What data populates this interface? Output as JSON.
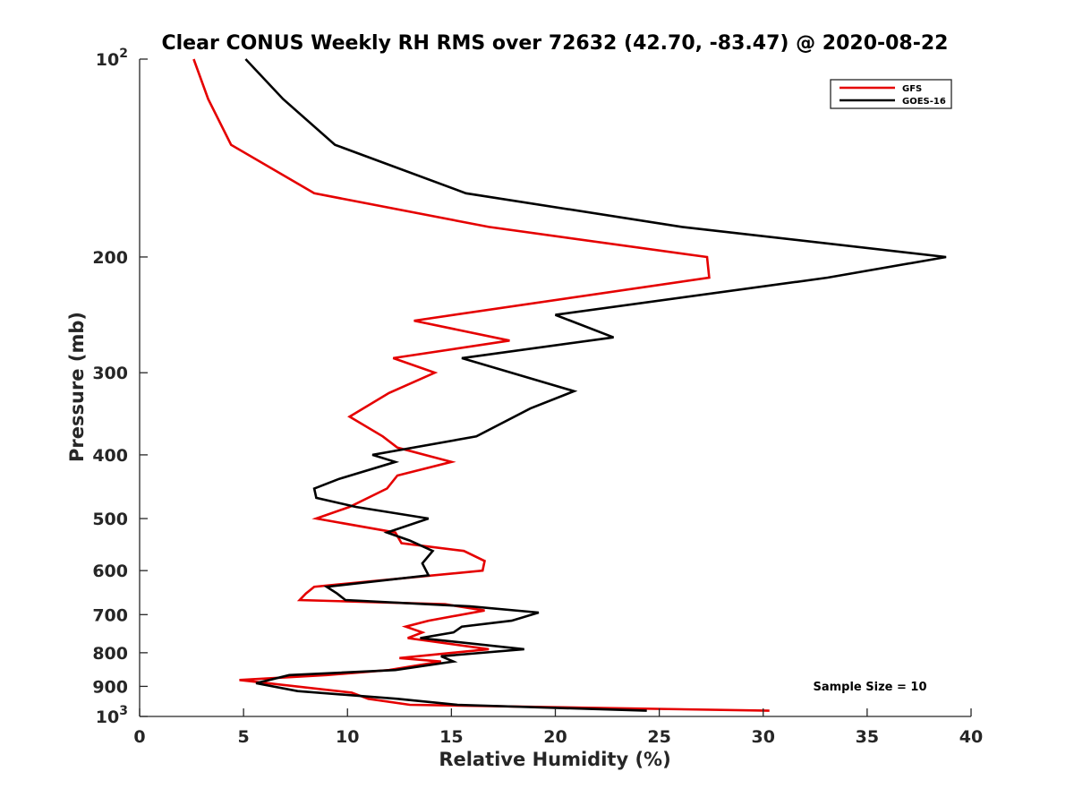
{
  "chart_data": {
    "type": "line",
    "title": "Clear CONUS Weekly RH RMS over 72632 (42.70, -83.47) @ 2020-08-22",
    "xlabel": "Relative Humidity (%)",
    "ylabel": "Pressure (mb)",
    "xlim": [
      0,
      40
    ],
    "ylim": [
      100,
      1000
    ],
    "y_scale": "log",
    "y_reversed": true,
    "x_ticks": [
      "0",
      "5",
      "10",
      "15",
      "20",
      "25",
      "30",
      "35",
      "40"
    ],
    "y_ticks": [
      {
        "value": 100,
        "base": "10",
        "exp": "2"
      },
      {
        "value": 200,
        "label": "200"
      },
      {
        "value": 300,
        "label": "300"
      },
      {
        "value": 400,
        "label": "400"
      },
      {
        "value": 500,
        "label": "500"
      },
      {
        "value": 600,
        "label": "600"
      },
      {
        "value": 700,
        "label": "700"
      },
      {
        "value": 800,
        "label": "800"
      },
      {
        "value": 900,
        "label": "900"
      },
      {
        "value": 1000,
        "base": "10",
        "exp": "3"
      }
    ],
    "legend_position": "top-right",
    "grid": false,
    "annotation": "Sample Size = 10",
    "series": [
      {
        "name": "GFS",
        "color": "#e50000",
        "points": [
          [
            2.6,
            100
          ],
          [
            3.3,
            115
          ],
          [
            4.4,
            135
          ],
          [
            8.4,
            160
          ],
          [
            16.8,
            180
          ],
          [
            27.3,
            200
          ],
          [
            27.4,
            215
          ],
          [
            13.2,
            250
          ],
          [
            17.8,
            268
          ],
          [
            12.2,
            285
          ],
          [
            14.2,
            300
          ],
          [
            12.0,
            322
          ],
          [
            10.1,
            350
          ],
          [
            11.7,
            375
          ],
          [
            12.4,
            390
          ],
          [
            15.0,
            410
          ],
          [
            12.4,
            430
          ],
          [
            11.9,
            450
          ],
          [
            10.1,
            480
          ],
          [
            8.5,
            500
          ],
          [
            12.3,
            525
          ],
          [
            12.6,
            545
          ],
          [
            15.6,
            560
          ],
          [
            16.6,
            580
          ],
          [
            16.5,
            600
          ],
          [
            8.4,
            635
          ],
          [
            8.0,
            650
          ],
          [
            7.7,
            665
          ],
          [
            14.7,
            675
          ],
          [
            16.6,
            690
          ],
          [
            13.9,
            715
          ],
          [
            12.8,
            730
          ],
          [
            13.6,
            745
          ],
          [
            12.9,
            760
          ],
          [
            16.8,
            790
          ],
          [
            12.5,
            815
          ],
          [
            14.5,
            825
          ],
          [
            12.0,
            850
          ],
          [
            9.0,
            865
          ],
          [
            4.8,
            880
          ],
          [
            10.2,
            920
          ],
          [
            11.0,
            940
          ],
          [
            13.0,
            960
          ],
          [
            30.3,
            980
          ]
        ]
      },
      {
        "name": "GOES-16",
        "color": "#000000",
        "points": [
          [
            5.1,
            100
          ],
          [
            6.9,
            115
          ],
          [
            9.4,
            135
          ],
          [
            15.7,
            160
          ],
          [
            26.1,
            180
          ],
          [
            38.8,
            200
          ],
          [
            33.1,
            215
          ],
          [
            20.0,
            245
          ],
          [
            22.8,
            265
          ],
          [
            15.5,
            285
          ],
          [
            20.9,
            320
          ],
          [
            18.8,
            340
          ],
          [
            16.2,
            375
          ],
          [
            11.2,
            400
          ],
          [
            12.3,
            410
          ],
          [
            9.6,
            435
          ],
          [
            8.4,
            450
          ],
          [
            8.5,
            465
          ],
          [
            10.4,
            480
          ],
          [
            13.9,
            500
          ],
          [
            11.9,
            525
          ],
          [
            13.0,
            540
          ],
          [
            14.1,
            560
          ],
          [
            13.6,
            585
          ],
          [
            13.9,
            610
          ],
          [
            9.0,
            635
          ],
          [
            9.5,
            650
          ],
          [
            9.9,
            665
          ],
          [
            15.9,
            680
          ],
          [
            19.2,
            695
          ],
          [
            17.9,
            715
          ],
          [
            15.5,
            730
          ],
          [
            15.1,
            745
          ],
          [
            13.5,
            760
          ],
          [
            18.5,
            790
          ],
          [
            14.5,
            810
          ],
          [
            15.1,
            825
          ],
          [
            12.3,
            850
          ],
          [
            7.2,
            865
          ],
          [
            5.6,
            890
          ],
          [
            7.6,
            915
          ],
          [
            12.4,
            940
          ],
          [
            15.3,
            960
          ],
          [
            24.4,
            980
          ]
        ]
      }
    ]
  }
}
